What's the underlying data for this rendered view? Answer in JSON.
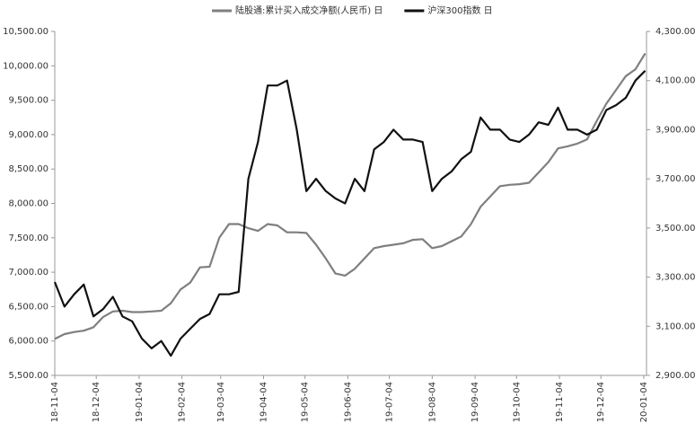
{
  "chart_data": {
    "type": "line",
    "x": [
      "2018-11-04",
      "2018-11-11",
      "2018-11-18",
      "2018-11-25",
      "2018-12-02",
      "2018-12-09",
      "2018-12-16",
      "2018-12-23",
      "2018-12-30",
      "2019-01-06",
      "2019-01-13",
      "2019-01-20",
      "2019-01-27",
      "2019-02-03",
      "2019-02-10",
      "2019-02-17",
      "2019-02-24",
      "2019-03-03",
      "2019-03-10",
      "2019-03-17",
      "2019-03-24",
      "2019-03-31",
      "2019-04-07",
      "2019-04-14",
      "2019-04-21",
      "2019-04-28",
      "2019-05-05",
      "2019-05-12",
      "2019-05-19",
      "2019-05-26",
      "2019-06-02",
      "2019-06-09",
      "2019-06-16",
      "2019-06-23",
      "2019-06-30",
      "2019-07-07",
      "2019-07-14",
      "2019-07-21",
      "2019-07-28",
      "2019-08-04",
      "2019-08-11",
      "2019-08-18",
      "2019-08-25",
      "2019-09-01",
      "2019-09-08",
      "2019-09-15",
      "2019-09-22",
      "2019-09-29",
      "2019-10-06",
      "2019-10-13",
      "2019-10-20",
      "2019-10-27",
      "2019-11-03",
      "2019-11-10",
      "2019-11-17",
      "2019-11-24",
      "2019-12-01",
      "2019-12-08",
      "2019-12-15",
      "2019-12-22",
      "2019-12-29",
      "2020-01-05"
    ],
    "xlim": [
      "2018-11-04",
      "2020-01-06"
    ],
    "xticks": [
      "2018-11-04",
      "2018-12-04",
      "2019-01-04",
      "2019-02-04",
      "2019-03-04",
      "2019-04-04",
      "2019-05-04",
      "2019-06-04",
      "2019-07-04",
      "2019-08-04",
      "2019-09-04",
      "2019-10-04",
      "2019-11-04",
      "2019-12-04",
      "2020-01-04"
    ],
    "series": [
      {
        "name": "陆股通:累计买入成交净额(人民币) 日",
        "color": "#7f7f7f",
        "values": [
          6030,
          6100,
          6130,
          6150,
          6200,
          6350,
          6430,
          6440,
          6420,
          6420,
          6430,
          6440,
          6550,
          6750,
          6850,
          7070,
          7080,
          7500,
          7700,
          7700,
          7640,
          7600,
          7700,
          7680,
          7580,
          7580,
          7570,
          7400,
          7200,
          6980,
          6950,
          7050,
          7200,
          7350,
          7380,
          7400,
          7420,
          7470,
          7480,
          7350,
          7380,
          7450,
          7520,
          7700,
          7950,
          8100,
          8250,
          8270,
          8280,
          8300,
          8450,
          8600,
          8800,
          8830,
          8870,
          8930,
          9200,
          9450,
          9650,
          9850,
          9950,
          10180
        ]
      },
      {
        "name": "沪深300指数 日",
        "color": "#111111",
        "axis": "y2",
        "values": [
          3280,
          3180,
          3230,
          3270,
          3140,
          3170,
          3220,
          3140,
          3120,
          3050,
          3010,
          3040,
          2980,
          3050,
          3090,
          3130,
          3150,
          3230,
          3230,
          3240,
          3700,
          3850,
          4080,
          4080,
          4100,
          3900,
          3650,
          3700,
          3650,
          3620,
          3600,
          3700,
          3650,
          3820,
          3850,
          3900,
          3860,
          3860,
          3850,
          3650,
          3700,
          3730,
          3780,
          3810,
          3950,
          3900,
          3900,
          3860,
          3850,
          3880,
          3930,
          3920,
          3990,
          3900,
          3900,
          3880,
          3900,
          3980,
          4000,
          4030,
          4100,
          4140
        ]
      }
    ],
    "ylim": [
      5500,
      10500
    ],
    "yticks": [
      {
        "value": 5500,
        "label": "5,500.00"
      },
      {
        "value": 6000,
        "label": "6,000.00"
      },
      {
        "value": 6500,
        "label": "6,500.00"
      },
      {
        "value": 7000,
        "label": "7,000.00"
      },
      {
        "value": 7500,
        "label": "7,500.00"
      },
      {
        "value": 8000,
        "label": "8,000.00"
      },
      {
        "value": 8500,
        "label": "8,500.00"
      },
      {
        "value": 9000,
        "label": "9,000.00"
      },
      {
        "value": 9500,
        "label": "9,500.00"
      },
      {
        "value": 10000,
        "label": "10,000.00"
      },
      {
        "value": 10500,
        "label": "10,500.00"
      }
    ],
    "y2lim": [
      2900,
      4300
    ],
    "y2ticks": [
      {
        "value": 2900,
        "label": "2,900.00"
      },
      {
        "value": 3100,
        "label": "3,100.00"
      },
      {
        "value": 3300,
        "label": "3,300.00"
      },
      {
        "value": 3500,
        "label": "3,500.00"
      },
      {
        "value": 3700,
        "label": "3,700.00"
      },
      {
        "value": 3900,
        "label": "3,900.00"
      },
      {
        "value": 4100,
        "label": "4,100.00"
      },
      {
        "value": 4300,
        "label": "4,300.00"
      }
    ],
    "grid": false,
    "legend": "top"
  }
}
